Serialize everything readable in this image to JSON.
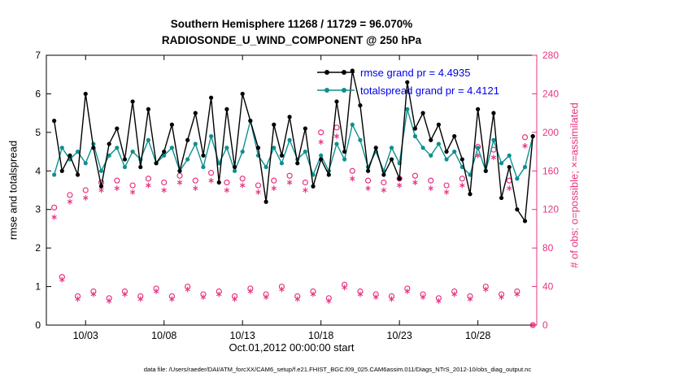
{
  "figure": {
    "title_line1": "Southern Hemisphere 11268 / 11729 = 96.070%",
    "title_line2": "RADIOSONDE_U_WIND_COMPONENT @ 250 hPa"
  },
  "legend": {
    "items": [
      {
        "label": "rmse grand pr = 4.4935",
        "color": "#000000"
      },
      {
        "label": "totalspread grand pr = 4.4121",
        "color": "#0e8f8f"
      }
    ]
  },
  "axes": {
    "left_label": "rmse and totalspread",
    "right_label": "# of obs: o=possible; ×=assimilated",
    "x_label": "Oct.01,2012 00:00:00 start"
  },
  "caption": "data file: /Users/raeder/DAI/ATM_forcXX/CAM6_setup/f.e21.FHIST_BGC.f09_025.CAM6assim.011/Diags_NTrS_2012-10/obs_diag_output.nc",
  "colors": {
    "right_axis": "#e6337f",
    "legend_text": "#0000ee",
    "rmse": "#000000",
    "totalspread": "#0e8f8f"
  },
  "chart_data": {
    "type": "line",
    "title": "Southern Hemisphere 11268 / 11729 = 96.070% — RADIOSONDE_U_WIND_COMPONENT @ 250 hPa",
    "xlabel": "Oct.01,2012 00:00:00 start",
    "ylabel_left": "rmse and totalspread",
    "ylabel_right": "# of obs: o=possible; ×=assimilated",
    "grid": false,
    "legend_position": "top-center-inside",
    "xlim": [
      0.5,
      31.75
    ],
    "ylim_left": [
      0,
      7
    ],
    "ylim_right": [
      0,
      280
    ],
    "left_ticks": [
      0,
      1,
      2,
      3,
      4,
      5,
      6,
      7
    ],
    "right_ticks": [
      0,
      40,
      80,
      120,
      160,
      200,
      240,
      280
    ],
    "x_ticks": [
      {
        "day": 3,
        "label": "10/03"
      },
      {
        "day": 8,
        "label": "10/08"
      },
      {
        "day": 13,
        "label": "10/13"
      },
      {
        "day": 18,
        "label": "10/18"
      },
      {
        "day": 23,
        "label": "10/23"
      },
      {
        "day": 28,
        "label": "10/28"
      }
    ],
    "x_days": [
      1,
      1.5,
      2,
      2.5,
      3,
      3.5,
      4,
      4.5,
      5,
      5.5,
      6,
      6.5,
      7,
      7.5,
      8,
      8.5,
      9,
      9.5,
      10,
      10.5,
      11,
      11.5,
      12,
      12.5,
      13,
      13.5,
      14,
      14.5,
      15,
      15.5,
      16,
      16.5,
      17,
      17.5,
      18,
      18.5,
      19,
      19.5,
      20,
      20.5,
      21,
      21.5,
      22,
      22.5,
      23,
      23.5,
      24,
      24.5,
      25,
      25.5,
      26,
      26.5,
      27,
      27.5,
      28,
      28.5,
      29,
      29.5,
      30,
      30.5,
      31,
      31.5
    ],
    "series": [
      {
        "name": "rmse",
        "type": "line",
        "axis": "left",
        "color": "#000000",
        "grand_mean": 4.4935,
        "values": [
          5.3,
          4.0,
          4.4,
          3.9,
          6.0,
          4.6,
          3.6,
          4.7,
          5.1,
          4.3,
          5.8,
          4.1,
          5.6,
          4.2,
          4.5,
          5.2,
          4.0,
          4.8,
          5.5,
          4.4,
          5.9,
          3.7,
          5.6,
          4.1,
          6.0,
          5.3,
          4.6,
          3.2,
          5.2,
          4.4,
          5.4,
          4.2,
          5.1,
          3.6,
          4.3,
          3.9,
          5.8,
          4.5,
          6.6,
          5.7,
          4.0,
          4.6,
          3.9,
          4.3,
          3.8,
          6.3,
          5.1,
          5.5,
          4.8,
          5.2,
          4.5,
          4.9,
          4.3,
          3.4,
          5.6,
          4.0,
          5.5,
          3.3,
          4.1,
          3.0,
          2.7,
          4.9
        ]
      },
      {
        "name": "totalspread",
        "type": "line",
        "axis": "left",
        "color": "#0e8f8f",
        "grand_mean": 4.4121,
        "values": [
          3.9,
          4.6,
          4.3,
          4.5,
          4.2,
          4.7,
          4.0,
          4.4,
          4.6,
          4.1,
          4.5,
          4.3,
          4.8,
          4.2,
          4.4,
          4.6,
          4.0,
          4.3,
          4.7,
          4.1,
          4.9,
          4.2,
          4.6,
          4.0,
          4.5,
          5.3,
          4.4,
          4.1,
          4.6,
          4.2,
          4.8,
          4.3,
          4.5,
          3.9,
          4.4,
          4.0,
          4.7,
          4.3,
          5.2,
          4.8,
          4.1,
          4.5,
          4.0,
          4.6,
          4.2,
          5.6,
          4.9,
          4.6,
          4.4,
          4.7,
          4.3,
          4.5,
          4.1,
          3.9,
          4.6,
          4.0,
          4.8,
          4.2,
          4.4,
          3.8,
          4.1,
          4.9
        ]
      },
      {
        "name": "possible_obs",
        "type": "scatter",
        "marker": "o",
        "axis": "right",
        "color": "#e6337f",
        "values": [
          122,
          50,
          135,
          30,
          140,
          35,
          148,
          28,
          150,
          35,
          145,
          30,
          152,
          38,
          148,
          30,
          155,
          40,
          150,
          32,
          158,
          35,
          148,
          30,
          152,
          38,
          145,
          32,
          150,
          40,
          155,
          30,
          148,
          35,
          200,
          28,
          205,
          42,
          160,
          35,
          150,
          32,
          148,
          30,
          152,
          38,
          155,
          32,
          150,
          28,
          145,
          35,
          152,
          30,
          185,
          40,
          182,
          32,
          150,
          35,
          195,
          0
        ]
      },
      {
        "name": "assimilated_obs",
        "type": "scatter",
        "marker": "asterisk",
        "axis": "right",
        "color": "#e6337f",
        "values": [
          112,
          47,
          128,
          27,
          132,
          32,
          140,
          25,
          142,
          32,
          138,
          27,
          145,
          35,
          140,
          27,
          148,
          37,
          142,
          29,
          150,
          32,
          140,
          27,
          145,
          35,
          138,
          29,
          142,
          37,
          148,
          27,
          140,
          32,
          190,
          25,
          196,
          39,
          152,
          32,
          142,
          29,
          140,
          27,
          145,
          35,
          148,
          29,
          142,
          25,
          138,
          32,
          145,
          27,
          176,
          37,
          174,
          29,
          142,
          32,
          186,
          0
        ]
      }
    ]
  }
}
